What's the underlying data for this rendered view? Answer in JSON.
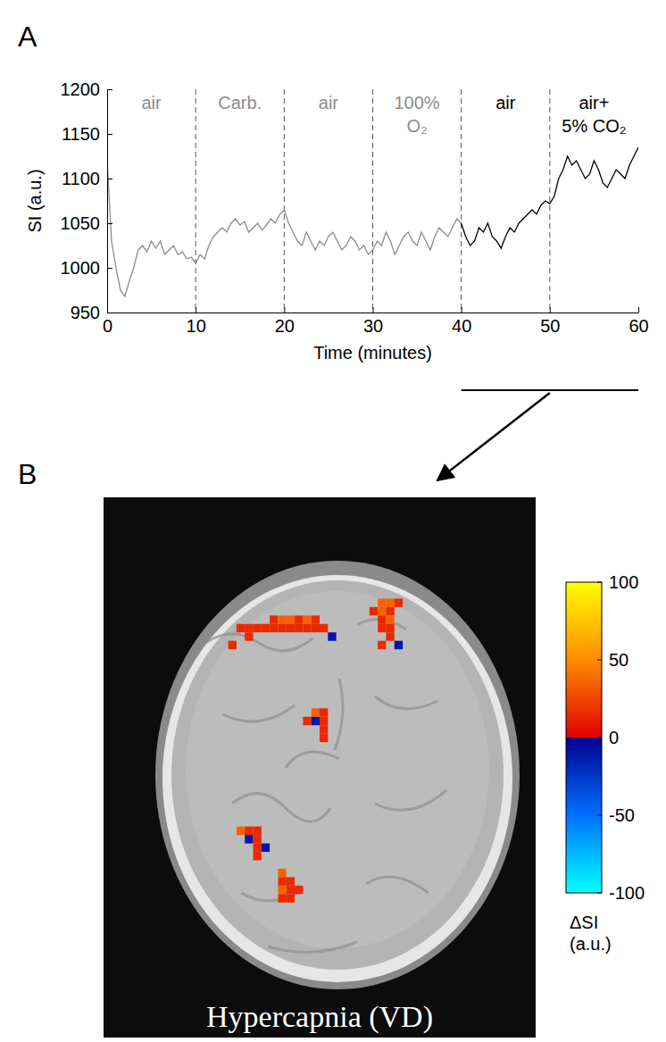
{
  "chart_data": [
    {
      "panel": "A",
      "type": "line",
      "x_label": "Time (minutes)",
      "y_label": "SI (a.u.)",
      "xlim": [
        0,
        60
      ],
      "ylim": [
        950,
        1200
      ],
      "xticks": [
        0,
        10,
        20,
        30,
        40,
        50,
        60
      ],
      "yticks": [
        950,
        1000,
        1050,
        1100,
        1150,
        1200
      ],
      "series": [
        {
          "color": "#8c8c8c",
          "x": [
            0,
            0.5,
            1,
            1.5,
            2,
            2.5,
            3,
            3.5,
            4,
            4.5,
            5,
            5.5,
            6,
            6.5,
            7,
            7.5,
            8,
            8.5,
            9,
            9.5,
            10,
            10.5,
            11,
            11.5,
            12,
            12.5,
            13,
            13.5,
            14,
            14.5,
            15,
            15.5,
            16,
            16.5,
            17,
            17.5,
            18,
            18.5,
            19,
            19.5,
            20,
            20.5,
            21,
            21.5,
            22,
            22.5,
            23,
            23.5,
            24,
            24.5,
            25,
            25.5,
            26,
            26.5,
            27,
            27.5,
            28,
            28.5,
            29,
            29.5,
            30,
            30.5,
            31,
            31.5,
            32,
            32.5,
            33,
            33.5,
            34,
            34.5,
            35,
            35.5,
            36,
            36.5,
            37,
            37.5,
            38,
            38.5,
            39,
            39.5,
            40
          ],
          "values": [
            1120,
            1030,
            1000,
            975,
            968,
            985,
            1000,
            1020,
            1025,
            1018,
            1030,
            1022,
            1030,
            1015,
            1020,
            1025,
            1015,
            1018,
            1010,
            1012,
            1005,
            1015,
            1010,
            1025,
            1035,
            1040,
            1045,
            1040,
            1050,
            1055,
            1048,
            1052,
            1040,
            1045,
            1050,
            1042,
            1048,
            1055,
            1050,
            1060,
            1065,
            1050,
            1040,
            1030,
            1025,
            1040,
            1030,
            1020,
            1030,
            1025,
            1035,
            1040,
            1030,
            1020,
            1025,
            1035,
            1030,
            1020,
            1025,
            1015,
            1020,
            1030,
            1025,
            1040,
            1030,
            1015,
            1025,
            1035,
            1040,
            1030,
            1025,
            1040,
            1030,
            1020,
            1035,
            1045,
            1040,
            1035,
            1045,
            1055,
            1050
          ]
        },
        {
          "color": "#000000",
          "x": [
            40,
            40.5,
            41,
            41.5,
            42,
            42.5,
            43,
            43.5,
            44,
            44.5,
            45,
            45.5,
            46,
            46.5,
            47,
            47.5,
            48,
            48.5,
            49,
            49.5,
            50,
            50.5,
            51,
            51.5,
            52,
            52.5,
            53,
            53.5,
            54,
            54.5,
            55,
            55.5,
            56,
            56.5,
            57,
            57.5,
            58,
            58.5,
            59,
            59.5,
            60
          ],
          "values": [
            1050,
            1035,
            1025,
            1030,
            1045,
            1040,
            1050,
            1035,
            1030,
            1022,
            1035,
            1045,
            1040,
            1050,
            1055,
            1060,
            1065,
            1060,
            1070,
            1075,
            1072,
            1080,
            1100,
            1110,
            1125,
            1115,
            1120,
            1110,
            1100,
            1105,
            1120,
            1110,
            1095,
            1090,
            1100,
            1110,
            1105,
            1100,
            1115,
            1125,
            1135
          ]
        }
      ],
      "annotations": [
        {
          "text": [
            "air"
          ],
          "x": [
            0,
            10
          ],
          "color": "#8c8c8c"
        },
        {
          "text": [
            "Carb."
          ],
          "x": [
            10,
            20
          ],
          "color": "#8c8c8c"
        },
        {
          "text": [
            "air"
          ],
          "x": [
            20,
            30
          ],
          "color": "#8c8c8c"
        },
        {
          "text": [
            "100%",
            "O₂"
          ],
          "x": [
            30,
            40
          ],
          "color": "#8c8c8c"
        },
        {
          "text": [
            "air"
          ],
          "x": [
            40,
            50
          ],
          "color": "#000000"
        },
        {
          "text": [
            "air+",
            "5% CO₂"
          ],
          "x": [
            50,
            60
          ],
          "color": "#000000"
        }
      ],
      "vlines": [
        10,
        20,
        30,
        40,
        50
      ],
      "highlight": [
        40,
        60
      ]
    },
    {
      "panel": "B",
      "type": "heatmap",
      "title": "Hypercapnia (VD)",
      "xlim": [
        0,
        52
      ],
      "ylim": [
        0,
        64
      ],
      "tick_labels": false,
      "cells": [
        [
          17,
          15,
          15
        ],
        [
          15,
          16,
          15
        ],
        [
          15,
          17,
          15
        ],
        [
          15,
          18,
          15
        ],
        [
          15,
          19,
          15
        ],
        [
          16,
          17,
          15
        ],
        [
          14,
          20,
          15
        ],
        [
          14,
          21,
          35
        ],
        [
          14,
          22,
          35
        ],
        [
          14,
          23,
          15
        ],
        [
          14,
          24,
          35
        ],
        [
          14,
          25,
          15
        ],
        [
          15,
          20,
          15
        ],
        [
          15,
          21,
          15
        ],
        [
          15,
          22,
          15
        ],
        [
          15,
          23,
          15
        ],
        [
          15,
          24,
          15
        ],
        [
          15,
          25,
          15
        ],
        [
          15,
          26,
          15
        ],
        [
          16,
          27,
          -10
        ],
        [
          12,
          33,
          35
        ],
        [
          12,
          34,
          35
        ],
        [
          12,
          35,
          15
        ],
        [
          13,
          32,
          15
        ],
        [
          13,
          33,
          35
        ],
        [
          13,
          34,
          15
        ],
        [
          14,
          33,
          15
        ],
        [
          14,
          34,
          35
        ],
        [
          15,
          33,
          15
        ],
        [
          15,
          34,
          15
        ],
        [
          16,
          34,
          15
        ],
        [
          17,
          33,
          15
        ],
        [
          17,
          35,
          -10
        ],
        [
          25,
          25,
          35
        ],
        [
          25,
          26,
          15
        ],
        [
          26,
          24,
          15
        ],
        [
          26,
          25,
          -10
        ],
        [
          26,
          26,
          15
        ],
        [
          27,
          26,
          15
        ],
        [
          28,
          26,
          15
        ],
        [
          39,
          16,
          35
        ],
        [
          39,
          17,
          15
        ],
        [
          39,
          18,
          15
        ],
        [
          40,
          17,
          -10
        ],
        [
          40,
          18,
          15
        ],
        [
          41,
          19,
          -10
        ],
        [
          41,
          18,
          15
        ],
        [
          42,
          18,
          15
        ],
        [
          44,
          21,
          35
        ],
        [
          45,
          21,
          15
        ],
        [
          45,
          22,
          15
        ],
        [
          46,
          21,
          35
        ],
        [
          46,
          22,
          15
        ],
        [
          46,
          23,
          15
        ],
        [
          47,
          21,
          15
        ],
        [
          47,
          22,
          15
        ]
      ],
      "colorbar": {
        "label": [
          "ΔSI",
          "(a.u.)"
        ],
        "range": [
          -100,
          100
        ],
        "ticks": [
          100,
          50,
          0,
          -50,
          -100
        ]
      }
    }
  ]
}
